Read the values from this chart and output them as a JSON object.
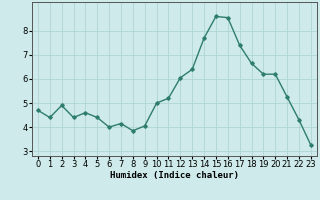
{
  "x": [
    0,
    1,
    2,
    3,
    4,
    5,
    6,
    7,
    8,
    9,
    10,
    11,
    12,
    13,
    14,
    15,
    16,
    17,
    18,
    19,
    20,
    21,
    22,
    23
  ],
  "y": [
    4.7,
    4.4,
    4.9,
    4.4,
    4.6,
    4.4,
    4.0,
    4.15,
    3.85,
    4.05,
    5.0,
    5.2,
    6.05,
    6.4,
    7.7,
    8.6,
    8.55,
    7.4,
    6.65,
    6.2,
    6.2,
    5.25,
    4.3,
    3.25
  ],
  "line_color": "#2e7d6e",
  "marker": "D",
  "marker_size": 1.8,
  "line_width": 1.0,
  "bg_color": "#ceeaea",
  "grid_color": "#b0d4d4",
  "xlabel": "Humidex (Indice chaleur)",
  "ylim": [
    2.8,
    9.2
  ],
  "xlim": [
    -0.5,
    23.5
  ],
  "yticks": [
    3,
    4,
    5,
    6,
    7,
    8
  ],
  "xticks": [
    0,
    1,
    2,
    3,
    4,
    5,
    6,
    7,
    8,
    9,
    10,
    11,
    12,
    13,
    14,
    15,
    16,
    17,
    18,
    19,
    20,
    21,
    22,
    23
  ],
  "xlabel_fontsize": 6.5,
  "tick_fontsize": 6.0
}
